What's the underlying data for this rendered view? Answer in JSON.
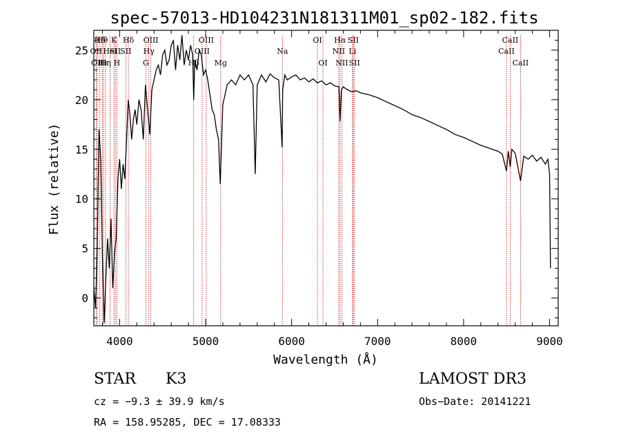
{
  "chart_data": {
    "type": "line",
    "title": "spec-57013-HD104231N181311M01_sp02-182.fits",
    "xlabel": "Wavelength (Å)",
    "ylabel": "Flux (relative)",
    "xlim": [
      3700,
      9100
    ],
    "ylim": [
      -2.8,
      27.0
    ],
    "x_ticks": [
      4000,
      5000,
      6000,
      7000,
      8000,
      9000
    ],
    "y_ticks": [
      0,
      5,
      10,
      15,
      20,
      25
    ],
    "line_color": "#000000",
    "marker_color": "#cc0000",
    "spectrum": {
      "name": "flux",
      "x": [
        3700,
        3720,
        3740,
        3760,
        3780,
        3800,
        3820,
        3840,
        3860,
        3880,
        3900,
        3920,
        3940,
        3960,
        3980,
        4000,
        4020,
        4040,
        4060,
        4080,
        4100,
        4120,
        4140,
        4160,
        4180,
        4200,
        4225,
        4250,
        4275,
        4300,
        4325,
        4350,
        4375,
        4400,
        4425,
        4450,
        4475,
        4500,
        4525,
        4550,
        4575,
        4600,
        4625,
        4650,
        4675,
        4700,
        4725,
        4750,
        4775,
        4800,
        4825,
        4850,
        4861,
        4875,
        4900,
        4925,
        4950,
        4975,
        5000,
        5025,
        5050,
        5075,
        5100,
        5125,
        5150,
        5170,
        5183,
        5200,
        5225,
        5250,
        5300,
        5350,
        5400,
        5450,
        5500,
        5550,
        5577,
        5600,
        5650,
        5700,
        5750,
        5800,
        5850,
        5890,
        5896,
        5920,
        5950,
        6000,
        6050,
        6100,
        6150,
        6200,
        6250,
        6300,
        6350,
        6400,
        6450,
        6500,
        6550,
        6563,
        6580,
        6600,
        6650,
        6700,
        6750,
        6800,
        6900,
        7000,
        7100,
        7200,
        7300,
        7400,
        7500,
        7600,
        7700,
        7800,
        7900,
        8000,
        8100,
        8200,
        8300,
        8400,
        8450,
        8498,
        8520,
        8542,
        8560,
        8600,
        8662,
        8700,
        8750,
        8800,
        8850,
        8900,
        8950,
        8980,
        9000,
        9010
      ],
      "y": [
        1.0,
        -1.0,
        5.0,
        17.0,
        14.0,
        4.0,
        -2.5,
        2.0,
        6.0,
        3.0,
        8.0,
        1.0,
        4.5,
        6.0,
        12.0,
        14.0,
        11.0,
        13.5,
        12.0,
        16.0,
        20.0,
        18.5,
        16.0,
        18.0,
        19.0,
        17.5,
        20.0,
        19.0,
        16.0,
        21.5,
        19.0,
        16.5,
        21.0,
        22.0,
        23.0,
        23.5,
        22.5,
        24.5,
        25.0,
        23.5,
        24.0,
        25.5,
        26.0,
        23.0,
        25.5,
        24.0,
        26.5,
        23.5,
        25.0,
        24.0,
        25.5,
        24.5,
        20.0,
        24.0,
        23.0,
        25.0,
        24.5,
        22.5,
        23.0,
        22.0,
        20.5,
        19.0,
        18.5,
        17.0,
        16.0,
        11.5,
        15.0,
        19.5,
        20.5,
        21.5,
        22.0,
        21.5,
        22.5,
        22.0,
        22.5,
        21.5,
        12.5,
        21.5,
        22.5,
        21.8,
        22.6,
        22.2,
        22.0,
        15.2,
        21.0,
        22.5,
        22.0,
        22.3,
        22.5,
        22.0,
        22.2,
        21.8,
        22.1,
        21.7,
        21.9,
        21.5,
        21.7,
        21.4,
        21.3,
        17.8,
        21.0,
        21.3,
        21.0,
        20.8,
        20.9,
        20.7,
        20.5,
        20.2,
        19.8,
        19.4,
        19.0,
        18.5,
        18.2,
        17.8,
        17.4,
        17.0,
        16.5,
        16.2,
        15.8,
        15.4,
        15.1,
        14.8,
        14.5,
        12.8,
        14.8,
        13.2,
        15.0,
        14.6,
        11.8,
        14.3,
        14.0,
        14.4,
        13.8,
        14.2,
        13.5,
        14.0,
        12.5,
        3.0
      ]
    },
    "lines": [
      {
        "label": "Hδ",
        "wave": 3770,
        "row": 1
      },
      {
        "label": "OII",
        "wave": 3727,
        "row": 2
      },
      {
        "label": "Hθ",
        "wave": 3798,
        "row": 1
      },
      {
        "label": "OII",
        "wave": 3740,
        "row": 3
      },
      {
        "label": "Hε",
        "wave": 3812,
        "row": 3
      },
      {
        "label": "Hη",
        "wave": 3835,
        "row": 3
      },
      {
        "label": "HeI",
        "wave": 3889,
        "row": 2
      },
      {
        "label": "K",
        "wave": 3934,
        "row": 1
      },
      {
        "label": "SII",
        "wave": 3950,
        "row": 2
      },
      {
        "label": "H",
        "wave": 3968,
        "row": 3
      },
      {
        "label": "Hδ",
        "wave": 4102,
        "row": 1
      },
      {
        "label": "SII",
        "wave": 4072,
        "row": 2
      },
      {
        "label": "OIII",
        "wave": 4363,
        "row": 1
      },
      {
        "label": "Hγ",
        "wave": 4340,
        "row": 2
      },
      {
        "label": "G",
        "wave": 4305,
        "row": 3
      },
      {
        "label": "OIII",
        "wave": 5007,
        "row": 1
      },
      {
        "label": "OIII",
        "wave": 4959,
        "row": 2
      },
      {
        "label": "Hβ",
        "wave": 4861,
        "row": 3
      },
      {
        "label": "Mg",
        "wave": 5175,
        "row": 3
      },
      {
        "label": "Na",
        "wave": 5893,
        "row": 2
      },
      {
        "label": "OI",
        "wave": 6300,
        "row": 1
      },
      {
        "label": "OI",
        "wave": 6364,
        "row": 3
      },
      {
        "label": "Hα",
        "wave": 6563,
        "row": 1
      },
      {
        "label": "SII",
        "wave": 6716,
        "row": 1
      },
      {
        "label": "NII",
        "wave": 6548,
        "row": 2
      },
      {
        "label": "Li",
        "wave": 6708,
        "row": 2
      },
      {
        "label": "NII",
        "wave": 6584,
        "row": 3
      },
      {
        "label": "SII",
        "wave": 6731,
        "row": 3
      },
      {
        "label": "CaII",
        "wave": 8542,
        "row": 1
      },
      {
        "label": "CaII",
        "wave": 8498,
        "row": 2
      },
      {
        "label": "CaII",
        "wave": 8662,
        "row": 3
      }
    ]
  },
  "info": {
    "object_class": "STAR",
    "subclass": "K3",
    "survey": "LAMOST DR3",
    "cz": "cz = −9.3 ± 39.9 km/s",
    "obs_date": "Obs−Date: 20141221",
    "coords": "RA = 158.95285, DEC =  17.08333"
  }
}
